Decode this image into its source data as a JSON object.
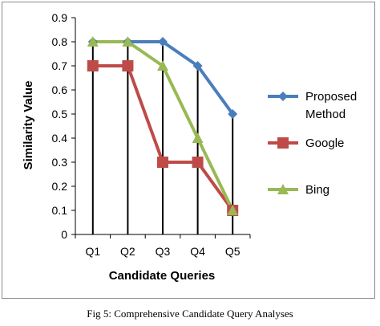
{
  "chart_data": {
    "type": "line",
    "categories": [
      "Q1",
      "Q2",
      "Q3",
      "Q4",
      "Q5"
    ],
    "series": [
      {
        "name": "Proposed Method",
        "values": [
          0.8,
          0.8,
          0.8,
          0.7,
          0.5
        ],
        "color": "#4a7ebb",
        "marker": "diamond"
      },
      {
        "name": "Google",
        "values": [
          0.7,
          0.7,
          0.3,
          0.3,
          0.1
        ],
        "color": "#be4b48",
        "marker": "square"
      },
      {
        "name": "Bing",
        "values": [
          0.8,
          0.8,
          0.7,
          0.4,
          0.1
        ],
        "color": "#98b954",
        "marker": "triangle"
      }
    ],
    "xlabel": "Candidate Queries",
    "ylabel": "Similarity Value",
    "ylim": [
      0,
      0.9
    ],
    "yticks": [
      "0",
      "0.1",
      "0.2",
      "0.3",
      "0.4",
      "0.5",
      "0.6",
      "0.7",
      "0.8",
      "0.9"
    ],
    "grid": "vertical drop lines at each category",
    "legend_position": "right"
  },
  "caption": "Fig 5: Comprehensive Candidate Query Analyses"
}
